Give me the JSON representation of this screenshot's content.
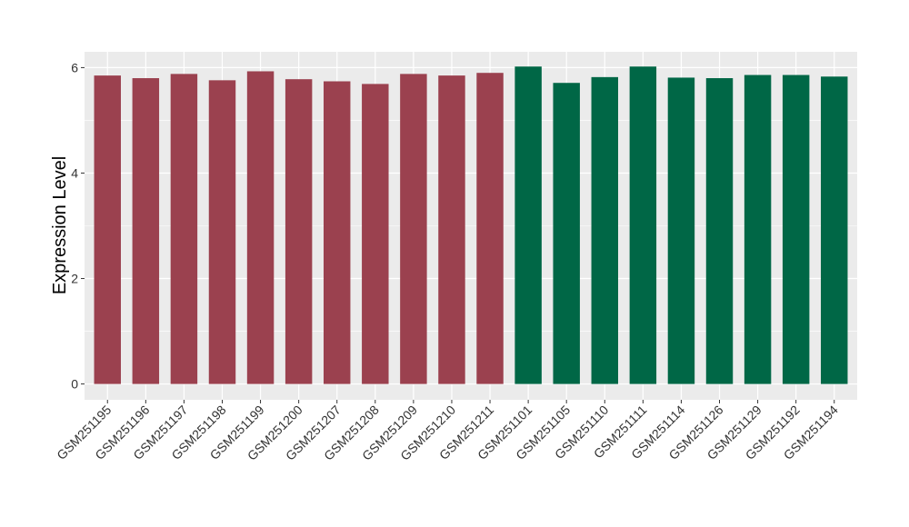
{
  "chart_data": {
    "type": "bar",
    "title": "",
    "xlabel": "",
    "ylabel": "Expression Level",
    "ylim": [
      -0.3,
      6.3
    ],
    "yticks": [
      0,
      2,
      4,
      6
    ],
    "ytick_labels": [
      "0",
      "2",
      "4",
      "6"
    ],
    "grid": true,
    "legend": "none",
    "categories": [
      "GSM251195",
      "GSM251196",
      "GSM251197",
      "GSM251198",
      "GSM251199",
      "GSM251200",
      "GSM251207",
      "GSM251208",
      "GSM251209",
      "GSM251210",
      "GSM251211",
      "GSM251101",
      "GSM251105",
      "GSM251110",
      "GSM251111",
      "GSM251114",
      "GSM251126",
      "GSM251129",
      "GSM251192",
      "GSM251194"
    ],
    "values": [
      5.85,
      5.8,
      5.88,
      5.76,
      5.93,
      5.78,
      5.74,
      5.69,
      5.88,
      5.85,
      5.9,
      6.02,
      5.71,
      5.82,
      6.02,
      5.81,
      5.8,
      5.86,
      5.86,
      5.83
    ],
    "group_colors": [
      "#9B414F",
      "#9B414F",
      "#9B414F",
      "#9B414F",
      "#9B414F",
      "#9B414F",
      "#9B414F",
      "#9B414F",
      "#9B414F",
      "#9B414F",
      "#9B414F",
      "#006746",
      "#006746",
      "#006746",
      "#006746",
      "#006746",
      "#006746",
      "#006746",
      "#006746",
      "#006746"
    ]
  },
  "colors": {
    "panel_background": "#EBEBEB",
    "grid_major": "#FFFFFF",
    "group_a": "#9B414F",
    "group_b": "#006746"
  }
}
